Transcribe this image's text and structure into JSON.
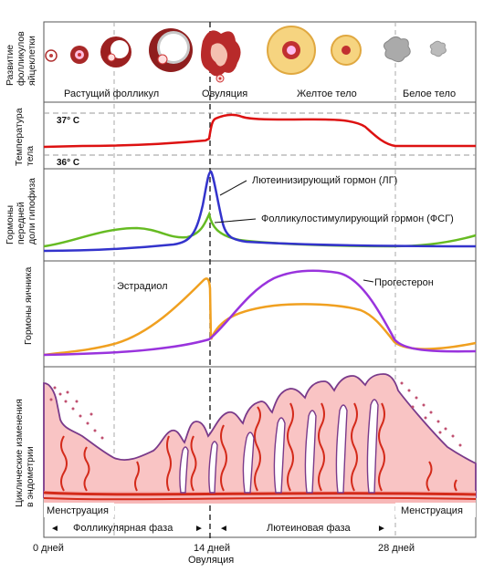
{
  "rows": {
    "follicle": [
      "Развитие",
      "фолликулов",
      "яйцеклетки"
    ],
    "temperature": [
      "Температура",
      "тела"
    ],
    "pituitary": [
      "Гормоны",
      "передней",
      "доли гипофиза"
    ],
    "ovary": [
      "Гормоны яичника"
    ],
    "endometrium": [
      "Циклические изменения",
      "в эндометрии"
    ]
  },
  "follicle_stages": {
    "growing": "Растущий фолликул",
    "ovulation": "Овуляция",
    "yellow_body": "Желтое тело",
    "white_body": "Белое тело"
  },
  "temperature": {
    "high": "37° C",
    "low": "36° C"
  },
  "hormones": {
    "lh": "Лютеинизирующий гормон (ЛГ)",
    "fsh": "Фолликулостимулирующий гормон (ФСГ)",
    "estradiol": "Эстрадиол",
    "progesterone": "Прогестерон"
  },
  "phases": {
    "menstruation_left": "Менструация",
    "follicular": "Фолликулярная фаза",
    "luteal": "Лютеиновая фаза",
    "menstruation_right": "Менструация",
    "arrow_left": "◄",
    "arrow_right": "►"
  },
  "days": {
    "start": "0 дней",
    "mid": "14 дней",
    "mid_sub": "Овуляция",
    "end": "28 дней"
  },
  "colors": {
    "lh": "#3333cc",
    "fsh": "#66bb22",
    "estradiol": "#f0a020",
    "progesterone": "#9933dd",
    "temperature": "#dd1111",
    "endometrium_fill": "#f9c4c4",
    "vessel": "#d42a1a",
    "border": "#7a3a8a"
  }
}
